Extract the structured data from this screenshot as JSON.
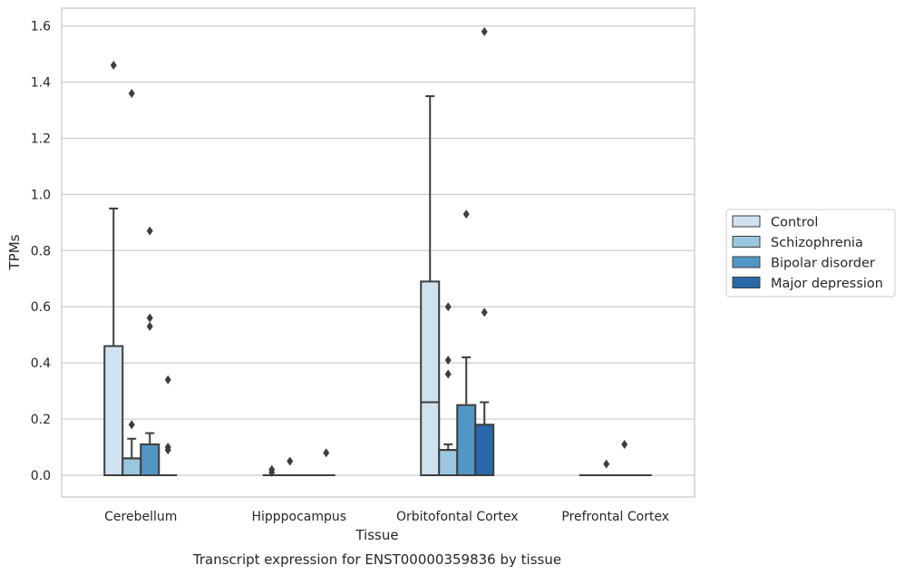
{
  "chart_data": {
    "type": "box",
    "title": "",
    "caption": "Transcript expression for ENST00000359836 by tissue",
    "xlabel": "Tissue",
    "ylabel": "TPMs",
    "ylim": [
      -0.08,
      1.66
    ],
    "yticks": [
      0.0,
      0.2,
      0.4,
      0.6,
      0.8,
      1.0,
      1.2,
      1.4,
      1.6
    ],
    "ytick_labels": [
      "0.0",
      "0.2",
      "0.4",
      "0.6",
      "0.8",
      "1.0",
      "1.2",
      "1.4",
      "1.6"
    ],
    "grid": "horizontal",
    "legend_position": "right",
    "categories": [
      "Cerebellum",
      "Hipppocampus",
      "Orbitofontal Cortex",
      "Prefrontal Cortex"
    ],
    "series": [
      {
        "name": "Control",
        "color": "#d0e1f0",
        "boxes": [
          {
            "q1": 0.0,
            "median": 0.0,
            "q3": 0.46,
            "whisker_low": 0.0,
            "whisker_high": 0.95,
            "outliers": [
              1.46
            ]
          },
          {
            "q1": 0.0,
            "median": 0.0,
            "q3": 0.0,
            "whisker_low": 0.0,
            "whisker_high": 0.0,
            "outliers": [
              0.01,
              0.02
            ]
          },
          {
            "q1": 0.0,
            "median": 0.26,
            "q3": 0.69,
            "whisker_low": 0.0,
            "whisker_high": 1.35,
            "outliers": []
          },
          {
            "q1": 0.0,
            "median": 0.0,
            "q3": 0.0,
            "whisker_low": 0.0,
            "whisker_high": 0.0,
            "outliers": []
          }
        ]
      },
      {
        "name": "Schizophrenia",
        "color": "#9ac7e0",
        "boxes": [
          {
            "q1": 0.0,
            "median": 0.06,
            "q3": 0.06,
            "whisker_low": 0.0,
            "whisker_high": 0.13,
            "outliers": [
              0.18,
              1.36
            ]
          },
          {
            "q1": 0.0,
            "median": 0.0,
            "q3": 0.0,
            "whisker_low": 0.0,
            "whisker_high": 0.0,
            "outliers": [
              0.05
            ]
          },
          {
            "q1": 0.0,
            "median": 0.09,
            "q3": 0.09,
            "whisker_low": 0.0,
            "whisker_high": 0.11,
            "outliers": [
              0.36,
              0.41,
              0.6
            ]
          },
          {
            "q1": 0.0,
            "median": 0.0,
            "q3": 0.0,
            "whisker_low": 0.0,
            "whisker_high": 0.0,
            "outliers": [
              0.04
            ]
          }
        ]
      },
      {
        "name": "Bipolar disorder",
        "color": "#5296c6",
        "boxes": [
          {
            "q1": 0.0,
            "median": 0.0,
            "q3": 0.11,
            "whisker_low": 0.0,
            "whisker_high": 0.15,
            "outliers": [
              0.53,
              0.56,
              0.87
            ]
          },
          {
            "q1": 0.0,
            "median": 0.0,
            "q3": 0.0,
            "whisker_low": 0.0,
            "whisker_high": 0.0,
            "outliers": []
          },
          {
            "q1": 0.0,
            "median": 0.0,
            "q3": 0.25,
            "whisker_low": 0.0,
            "whisker_high": 0.42,
            "outliers": [
              0.93
            ]
          },
          {
            "q1": 0.0,
            "median": 0.0,
            "q3": 0.0,
            "whisker_low": 0.0,
            "whisker_high": 0.0,
            "outliers": [
              0.11
            ]
          }
        ]
      },
      {
        "name": "Major depression",
        "color": "#2a69a9",
        "boxes": [
          {
            "q1": 0.0,
            "median": 0.0,
            "q3": 0.0,
            "whisker_low": 0.0,
            "whisker_high": 0.0,
            "outliers": [
              0.09,
              0.1,
              0.34
            ]
          },
          {
            "q1": 0.0,
            "median": 0.0,
            "q3": 0.0,
            "whisker_low": 0.0,
            "whisker_high": 0.0,
            "outliers": [
              0.08
            ]
          },
          {
            "q1": 0.0,
            "median": 0.0,
            "q3": 0.18,
            "whisker_low": 0.0,
            "whisker_high": 0.26,
            "outliers": [
              0.58,
              1.58
            ]
          },
          {
            "q1": 0.0,
            "median": 0.0,
            "q3": 0.0,
            "whisker_low": 0.0,
            "whisker_high": 0.0,
            "outliers": []
          }
        ]
      }
    ]
  }
}
